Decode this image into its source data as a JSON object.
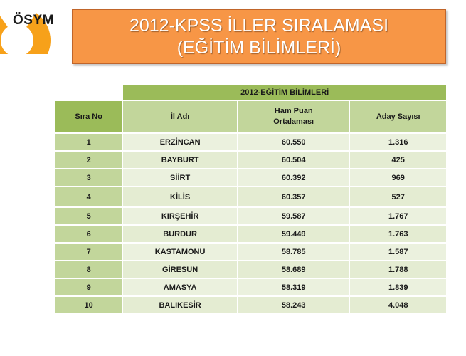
{
  "logo": {
    "text": "ÖSYM"
  },
  "title": {
    "line1": "2012-KPSS İLLER SIRALAMASI",
    "line2": "(EĞİTİM BİLİMLERİ)"
  },
  "colors": {
    "orange": "#f79646",
    "green_dark": "#9bbb59",
    "green_mid": "#c2d69b",
    "green_light": "#ebf1de"
  },
  "table": {
    "group_header": "2012-EĞİTİM BİLİMLERİ",
    "headers": {
      "rank": "Sıra No",
      "province": "İl Adı",
      "score_line1": "Ham Puan",
      "score_line2": "Ortalaması",
      "count": "Aday Sayısı"
    },
    "rows": [
      {
        "rank": "1",
        "province": "ERZİNCAN",
        "score": "60.550",
        "count": "1.316"
      },
      {
        "rank": "2",
        "province": "BAYBURT",
        "score": "60.504",
        "count": "425"
      },
      {
        "rank": "3",
        "province": "SİİRT",
        "score": "60.392",
        "count": "969"
      },
      {
        "rank": "4",
        "province": "KİLİS",
        "score": "60.357",
        "count": "527"
      },
      {
        "rank": "5",
        "province": "KIRŞEHİR",
        "score": "59.587",
        "count": "1.767"
      },
      {
        "rank": "6",
        "province": "BURDUR",
        "score": "59.449",
        "count": "1.763"
      },
      {
        "rank": "7",
        "province": "KASTAMONU",
        "score": "58.785",
        "count": "1.587"
      },
      {
        "rank": "8",
        "province": "GİRESUN",
        "score": "58.689",
        "count": "1.788"
      },
      {
        "rank": "9",
        "province": "AMASYA",
        "score": "58.319",
        "count": "1.839"
      },
      {
        "rank": "10",
        "province": "BALIKESİR",
        "score": "58.243",
        "count": "4.048"
      }
    ]
  }
}
